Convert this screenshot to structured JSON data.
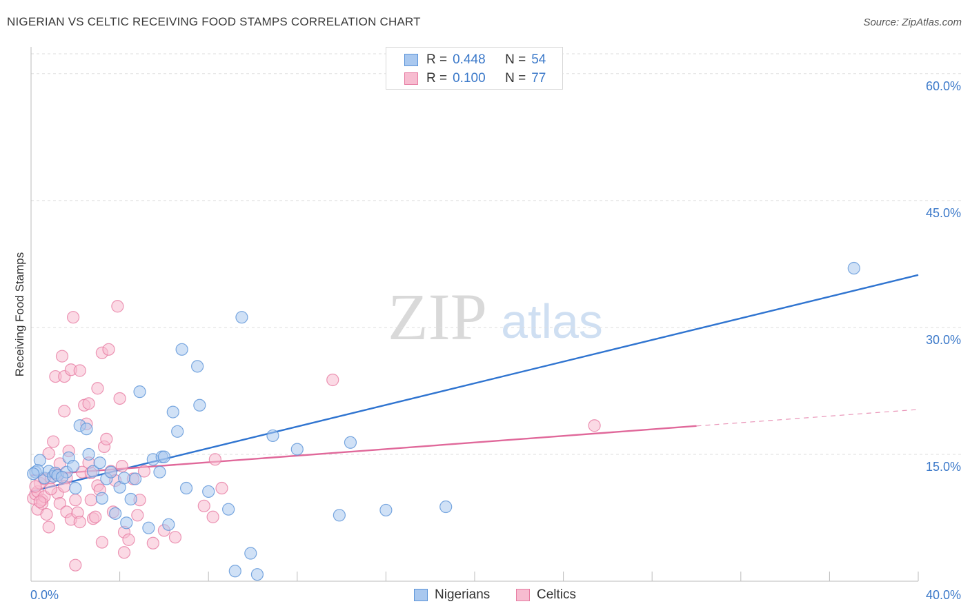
{
  "header": {
    "title": "NIGERIAN VS CELTIC RECEIVING FOOD STAMPS CORRELATION CHART",
    "source": "Source: ZipAtlas.com"
  },
  "watermark": {
    "zip": "ZIP",
    "atlas": "atlas"
  },
  "legend_top": {
    "rows": [
      {
        "r_label": "R =",
        "r_value": "0.448",
        "n_label": "N =",
        "n_value": "54"
      },
      {
        "r_label": "R =",
        "r_value": "0.100",
        "n_label": "N =",
        "n_value": "77"
      }
    ]
  },
  "legend_bottom": {
    "items": [
      "Nigerians",
      "Celtics"
    ]
  },
  "colors": {
    "nigerians_fill": "#a9c8ef",
    "nigerians_stroke": "#5b93d8",
    "nigerians_line": "#2f74d0",
    "celtics_fill": "#f7bcd0",
    "celtics_stroke": "#e77ca2",
    "celtics_line": "#e0689a",
    "grid": "#dddddd",
    "tick_text": "#3a78c9"
  },
  "chart_data": {
    "type": "scatter",
    "title": "NIGERIAN VS CELTIC RECEIVING FOOD STAMPS CORRELATION CHART",
    "xlabel": "",
    "ylabel": "Receiving Food Stamps",
    "xlim": [
      0,
      40
    ],
    "ylim": [
      0,
      63
    ],
    "x_tick_labels": [
      "0.0%",
      "40.0%"
    ],
    "y_ticks": [
      15,
      30,
      45,
      60
    ],
    "y_tick_labels": [
      "15.0%",
      "30.0%",
      "45.0%",
      "60.0%"
    ],
    "grid": "horizontal dashed",
    "legend": "top-center and bottom-center",
    "series": [
      {
        "name": "Nigerians",
        "r": 0.448,
        "n": 54,
        "trend": {
          "x": [
            0,
            40
          ],
          "y": [
            10.6,
            36.2
          ],
          "dashed_from": null
        },
        "points": [
          [
            0.2,
            12.9
          ],
          [
            0.4,
            14.3
          ],
          [
            0.6,
            12.2
          ],
          [
            0.8,
            13.0
          ],
          [
            1.0,
            12.4
          ],
          [
            1.1,
            12.8
          ],
          [
            1.2,
            12.5
          ],
          [
            1.6,
            12.9
          ],
          [
            1.7,
            14.6
          ],
          [
            2.0,
            11.0
          ],
          [
            1.9,
            13.6
          ],
          [
            2.2,
            18.4
          ],
          [
            2.5,
            18.0
          ],
          [
            2.6,
            15.0
          ],
          [
            2.8,
            13.0
          ],
          [
            3.1,
            14.0
          ],
          [
            3.2,
            9.8
          ],
          [
            3.4,
            12.1
          ],
          [
            3.6,
            12.9
          ],
          [
            3.8,
            8.0
          ],
          [
            4.0,
            11.1
          ],
          [
            4.2,
            12.2
          ],
          [
            4.3,
            6.9
          ],
          [
            4.5,
            9.7
          ],
          [
            4.7,
            12.1
          ],
          [
            4.9,
            22.4
          ],
          [
            5.3,
            6.3
          ],
          [
            5.5,
            14.4
          ],
          [
            5.8,
            12.9
          ],
          [
            5.9,
            14.7
          ],
          [
            6.0,
            14.7
          ],
          [
            6.2,
            6.7
          ],
          [
            6.4,
            20.0
          ],
          [
            6.6,
            17.7
          ],
          [
            6.8,
            27.4
          ],
          [
            7.0,
            11.0
          ],
          [
            7.5,
            25.4
          ],
          [
            7.6,
            20.8
          ],
          [
            8.0,
            10.6
          ],
          [
            8.9,
            8.5
          ],
          [
            9.2,
            1.2
          ],
          [
            9.5,
            31.2
          ],
          [
            9.9,
            3.3
          ],
          [
            10.2,
            0.8
          ],
          [
            10.9,
            17.2
          ],
          [
            12.0,
            15.6
          ],
          [
            13.9,
            7.8
          ],
          [
            14.4,
            16.4
          ],
          [
            16.0,
            8.4
          ],
          [
            18.7,
            8.8
          ],
          [
            37.1,
            37.0
          ],
          [
            0.3,
            13.1
          ],
          [
            1.4,
            12.3
          ],
          [
            0.1,
            12.7
          ]
        ]
      },
      {
        "name": "Celtics",
        "r": 0.1,
        "n": 77,
        "trend": {
          "x": [
            0,
            40
          ],
          "y": [
            12.5,
            20.3
          ],
          "dashed_from": 30
        },
        "points": [
          [
            0.1,
            9.8
          ],
          [
            0.2,
            10.3
          ],
          [
            0.3,
            10.6
          ],
          [
            0.3,
            8.5
          ],
          [
            0.4,
            11.6
          ],
          [
            0.5,
            9.6
          ],
          [
            0.5,
            9.2
          ],
          [
            0.6,
            10.0
          ],
          [
            0.6,
            12.1
          ],
          [
            0.7,
            7.9
          ],
          [
            0.8,
            15.1
          ],
          [
            0.8,
            6.4
          ],
          [
            0.9,
            12.2
          ],
          [
            1.0,
            16.5
          ],
          [
            1.1,
            24.2
          ],
          [
            1.1,
            12.7
          ],
          [
            1.2,
            10.4
          ],
          [
            1.3,
            13.9
          ],
          [
            1.3,
            9.2
          ],
          [
            1.4,
            26.6
          ],
          [
            1.5,
            24.2
          ],
          [
            1.5,
            20.1
          ],
          [
            1.6,
            12.2
          ],
          [
            1.6,
            8.2
          ],
          [
            1.7,
            15.4
          ],
          [
            1.8,
            25.0
          ],
          [
            1.8,
            7.3
          ],
          [
            1.9,
            31.2
          ],
          [
            2.0,
            9.6
          ],
          [
            2.0,
            1.9
          ],
          [
            2.1,
            8.1
          ],
          [
            2.2,
            7.0
          ],
          [
            2.2,
            24.9
          ],
          [
            2.3,
            12.9
          ],
          [
            2.4,
            20.8
          ],
          [
            2.5,
            18.6
          ],
          [
            2.6,
            14.0
          ],
          [
            2.6,
            21.0
          ],
          [
            2.7,
            9.6
          ],
          [
            2.8,
            7.4
          ],
          [
            2.9,
            7.6
          ],
          [
            3.0,
            22.8
          ],
          [
            3.0,
            11.3
          ],
          [
            3.1,
            10.8
          ],
          [
            3.2,
            4.6
          ],
          [
            3.2,
            27.0
          ],
          [
            3.3,
            15.9
          ],
          [
            3.4,
            16.8
          ],
          [
            3.5,
            27.4
          ],
          [
            3.6,
            13.0
          ],
          [
            3.8,
            11.9
          ],
          [
            3.9,
            32.5
          ],
          [
            4.0,
            21.6
          ],
          [
            4.1,
            13.6
          ],
          [
            4.2,
            5.8
          ],
          [
            4.2,
            3.4
          ],
          [
            4.4,
            4.9
          ],
          [
            4.6,
            12.1
          ],
          [
            4.8,
            7.8
          ],
          [
            4.9,
            9.6
          ],
          [
            5.1,
            13.0
          ],
          [
            5.5,
            4.5
          ],
          [
            6.0,
            6.0
          ],
          [
            6.5,
            5.2
          ],
          [
            7.8,
            8.9
          ],
          [
            8.2,
            7.6
          ],
          [
            8.3,
            14.4
          ],
          [
            8.6,
            11.0
          ],
          [
            13.6,
            23.8
          ],
          [
            25.4,
            18.4
          ],
          [
            0.2,
            11.2
          ],
          [
            0.9,
            10.9
          ],
          [
            1.2,
            12.6
          ],
          [
            2.7,
            12.8
          ],
          [
            0.4,
            9.4
          ],
          [
            1.5,
            11.2
          ],
          [
            3.7,
            8.2
          ]
        ]
      }
    ]
  }
}
